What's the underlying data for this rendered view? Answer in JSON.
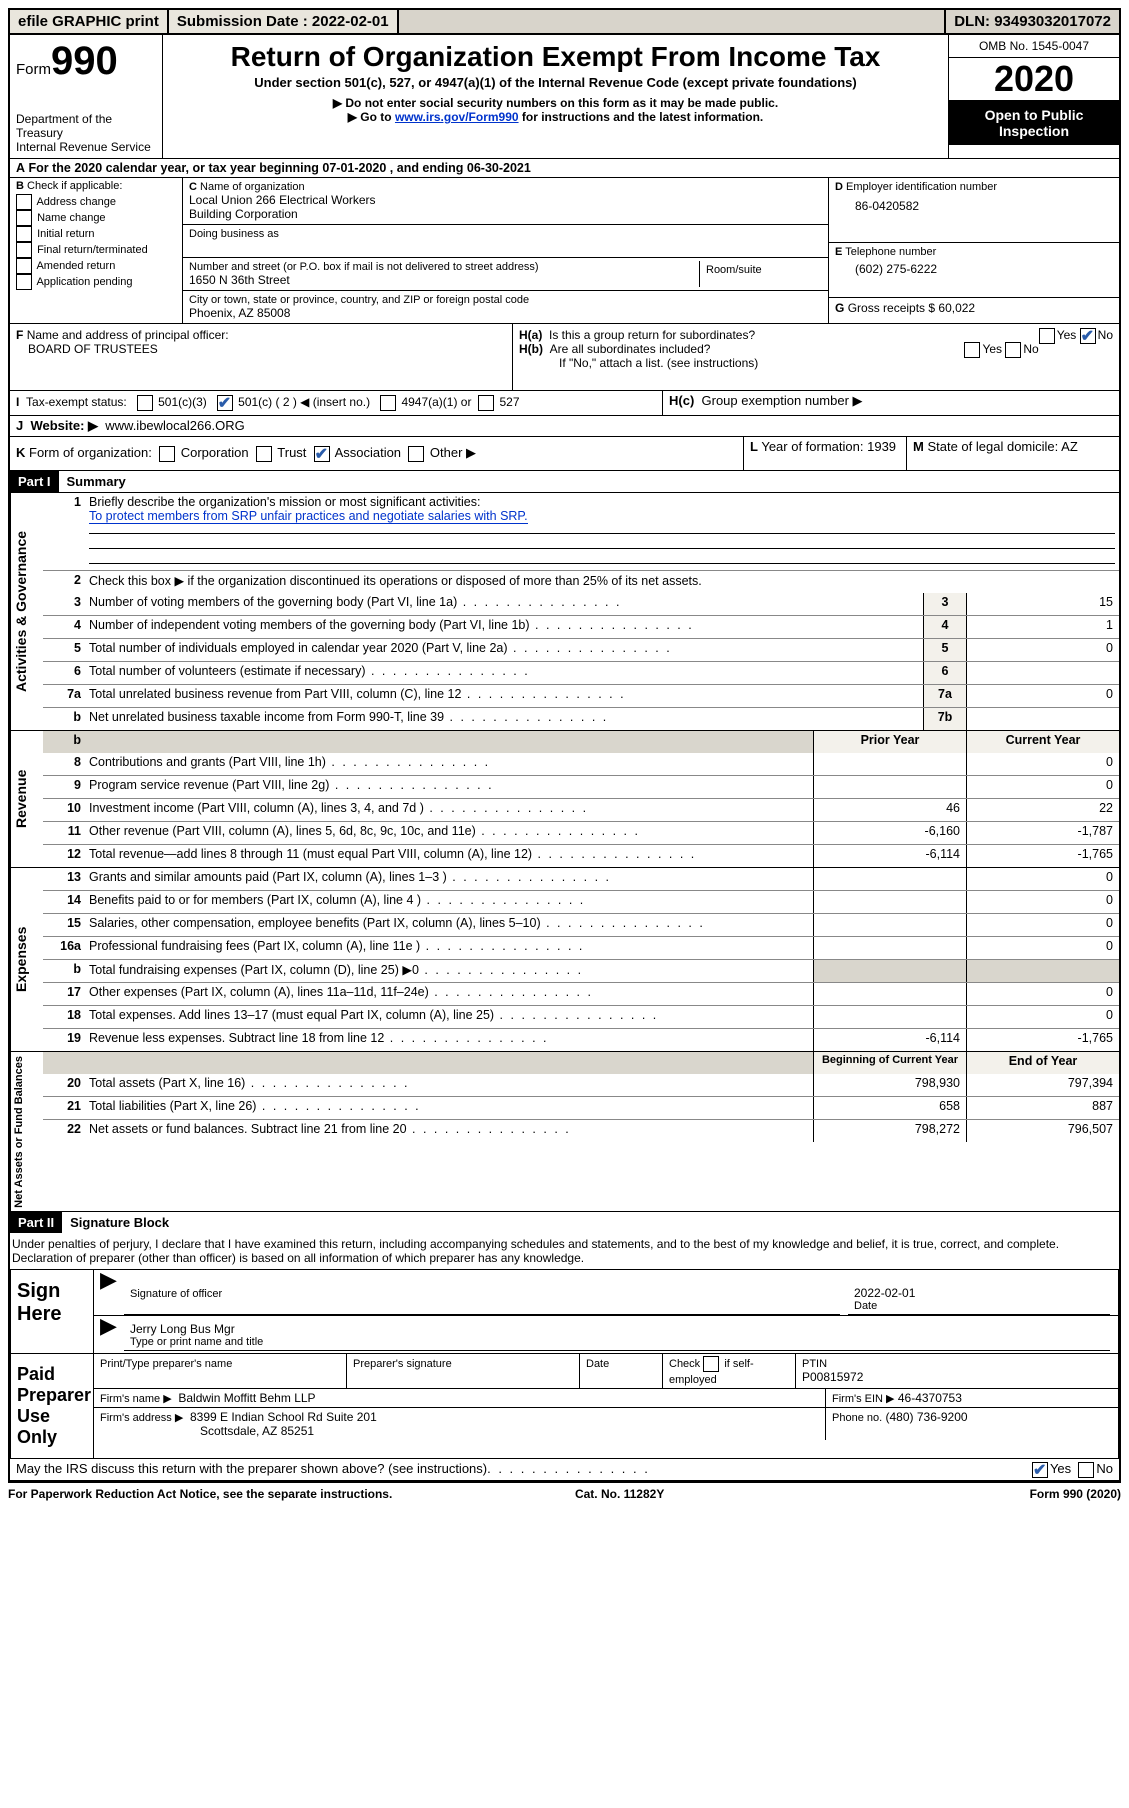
{
  "topbar": {
    "efile": "efile GRAPHIC print",
    "submission_label": "Submission Date : 2022-02-01",
    "dln": "DLN: 93493032017072"
  },
  "header": {
    "form_label": "Form",
    "form_number": "990",
    "dept": "Department of the Treasury",
    "irs": "Internal Revenue Service",
    "title": "Return of Organization Exempt From Income Tax",
    "subtitle": "Under section 501(c), 527, or 4947(a)(1) of the Internal Revenue Code (except private foundations)",
    "note1": "▶ Do not enter social security numbers on this form as it may be made public.",
    "note2_pre": "▶ Go to ",
    "note2_link": "www.irs.gov/Form990",
    "note2_post": " for instructions and the latest information.",
    "omb": "OMB No. 1545-0047",
    "year": "2020",
    "inspect": "Open to Public Inspection"
  },
  "lineA": "For the 2020 calendar year, or tax year beginning 07-01-2020    , and ending 06-30-2021",
  "boxB": {
    "label": "Check if applicable:",
    "items": [
      "Address change",
      "Name change",
      "Initial return",
      "Final return/terminated",
      "Amended return",
      "Application pending"
    ]
  },
  "boxC": {
    "label": "Name of organization",
    "name1": "Local Union 266 Electrical Workers",
    "name2": "Building Corporation",
    "dba_label": "Doing business as",
    "addr_label": "Number and street (or P.O. box if mail is not delivered to street address)",
    "addr": "1650 N 36th Street",
    "room_label": "Room/suite",
    "city_label": "City or town, state or province, country, and ZIP or foreign postal code",
    "city": "Phoenix, AZ  85008"
  },
  "boxD": {
    "label": "Employer identification number",
    "val": "86-0420582"
  },
  "boxE": {
    "label": "Telephone number",
    "val": "(602) 275-6222"
  },
  "boxG": {
    "label": "Gross receipts $",
    "val": "60,022"
  },
  "boxF": {
    "label": "Name and address of principal officer:",
    "val": "BOARD OF TRUSTEES"
  },
  "boxH": {
    "a_label": "Is this a group return for subordinates?",
    "b_label": "Are all subordinates included?",
    "b_note": "If \"No,\" attach a list. (see instructions)",
    "c_label": "Group exemption number ▶"
  },
  "boxI": {
    "label": "Tax-exempt status:",
    "o2": "501(c) ( 2 ) ◀ (insert no.)",
    "o1": "501(c)(3)",
    "o3": "4947(a)(1) or",
    "o4": "527"
  },
  "boxJ": {
    "label": "Website: ▶",
    "val": "www.ibewlocal266.ORG"
  },
  "boxK": {
    "label": "Form of organization:",
    "o1": "Corporation",
    "o2": "Trust",
    "o3": "Association",
    "o4": "Other ▶"
  },
  "boxL": {
    "label": "Year of formation:",
    "val": "1939"
  },
  "boxM": {
    "label": "State of legal domicile:",
    "val": "AZ"
  },
  "part1": {
    "tag": "Part I",
    "title": "Summary",
    "side_gov": "Activities & Governance",
    "side_rev": "Revenue",
    "side_exp": "Expenses",
    "side_net": "Net Assets or Fund Balances",
    "q1": "Briefly describe the organization's mission or most significant activities:",
    "q1_ans": "To protect members from SRP unfair practices and negotiate salaries with SRP.",
    "q2": "Check this box ▶     if the organization discontinued its operations or disposed of more than 25% of its net assets.",
    "lines_gov": [
      {
        "n": "3",
        "d": "Number of voting members of the governing body (Part VI, line 1a)",
        "b": "3",
        "v": "15"
      },
      {
        "n": "4",
        "d": "Number of independent voting members of the governing body (Part VI, line 1b)",
        "b": "4",
        "v": "1"
      },
      {
        "n": "5",
        "d": "Total number of individuals employed in calendar year 2020 (Part V, line 2a)",
        "b": "5",
        "v": "0"
      },
      {
        "n": "6",
        "d": "Total number of volunteers (estimate if necessary)",
        "b": "6",
        "v": ""
      },
      {
        "n": "7a",
        "d": "Total unrelated business revenue from Part VIII, column (C), line 12",
        "b": "7a",
        "v": "0"
      },
      {
        "n": "b",
        "d": "Net unrelated business taxable income from Form 990-T, line 39",
        "b": "7b",
        "v": ""
      }
    ],
    "hdr_prior": "Prior Year",
    "hdr_curr": "Current Year",
    "lines_rev": [
      {
        "n": "8",
        "d": "Contributions and grants (Part VIII, line 1h)",
        "p": "",
        "c": "0"
      },
      {
        "n": "9",
        "d": "Program service revenue (Part VIII, line 2g)",
        "p": "",
        "c": "0"
      },
      {
        "n": "10",
        "d": "Investment income (Part VIII, column (A), lines 3, 4, and 7d )",
        "p": "46",
        "c": "22"
      },
      {
        "n": "11",
        "d": "Other revenue (Part VIII, column (A), lines 5, 6d, 8c, 9c, 10c, and 11e)",
        "p": "-6,160",
        "c": "-1,787"
      },
      {
        "n": "12",
        "d": "Total revenue—add lines 8 through 11 (must equal Part VIII, column (A), line 12)",
        "p": "-6,114",
        "c": "-1,765"
      }
    ],
    "lines_exp": [
      {
        "n": "13",
        "d": "Grants and similar amounts paid (Part IX, column (A), lines 1–3 )",
        "p": "",
        "c": "0"
      },
      {
        "n": "14",
        "d": "Benefits paid to or for members (Part IX, column (A), line 4 )",
        "p": "",
        "c": "0"
      },
      {
        "n": "15",
        "d": "Salaries, other compensation, employee benefits (Part IX, column (A), lines 5–10)",
        "p": "",
        "c": "0"
      },
      {
        "n": "16a",
        "d": "Professional fundraising fees (Part IX, column (A), line 11e )",
        "p": "",
        "c": "0"
      },
      {
        "n": "b",
        "d": "Total fundraising expenses (Part IX, column (D), line 25) ▶0",
        "p": "grey",
        "c": "grey"
      },
      {
        "n": "17",
        "d": "Other expenses (Part IX, column (A), lines 11a–11d, 11f–24e)",
        "p": "",
        "c": "0"
      },
      {
        "n": "18",
        "d": "Total expenses. Add lines 13–17 (must equal Part IX, column (A), line 25)",
        "p": "",
        "c": "0"
      },
      {
        "n": "19",
        "d": "Revenue less expenses. Subtract line 18 from line 12",
        "p": "-6,114",
        "c": "-1,765"
      }
    ],
    "hdr_beg": "Beginning of Current Year",
    "hdr_end": "End of Year",
    "lines_net": [
      {
        "n": "20",
        "d": "Total assets (Part X, line 16)",
        "p": "798,930",
        "c": "797,394"
      },
      {
        "n": "21",
        "d": "Total liabilities (Part X, line 26)",
        "p": "658",
        "c": "887"
      },
      {
        "n": "22",
        "d": "Net assets or fund balances. Subtract line 21 from line 20",
        "p": "798,272",
        "c": "796,507"
      }
    ]
  },
  "part2": {
    "tag": "Part II",
    "title": "Signature Block",
    "decl": "Under penalties of perjury, I declare that I have examined this return, including accompanying schedules and statements, and to the best of my knowledge and belief, it is true, correct, and complete. Declaration of preparer (other than officer) is based on all information of which preparer has any knowledge."
  },
  "sign": {
    "left": "Sign Here",
    "sig_label": "Signature of officer",
    "date_label": "Date",
    "date_val": "2022-02-01",
    "name_val": "Jerry Long  Bus Mgr",
    "name_label": "Type or print name and title"
  },
  "paid": {
    "left": "Paid Preparer Use Only",
    "h1": "Print/Type preparer's name",
    "h2": "Preparer's signature",
    "h3": "Date",
    "h4_a": "Check",
    "h4_b": "if self-employed",
    "h5": "PTIN",
    "h5_val": "P00815972",
    "firm_name_label": "Firm's name    ▶",
    "firm_name": "Baldwin Moffitt Behm LLP",
    "firm_ein_label": "Firm's EIN ▶",
    "firm_ein": "46-4370753",
    "firm_addr_label": "Firm's address ▶",
    "firm_addr1": "8399 E Indian School Rd Suite 201",
    "firm_addr2": "Scottsdale, AZ  85251",
    "phone_label": "Phone no.",
    "phone": "(480) 736-9200"
  },
  "discuss": "May the IRS discuss this return with the preparer shown above? (see instructions)",
  "footer": {
    "left": "For Paperwork Reduction Act Notice, see the separate instructions.",
    "mid": "Cat. No. 11282Y",
    "right": "Form 990 (2020)"
  }
}
